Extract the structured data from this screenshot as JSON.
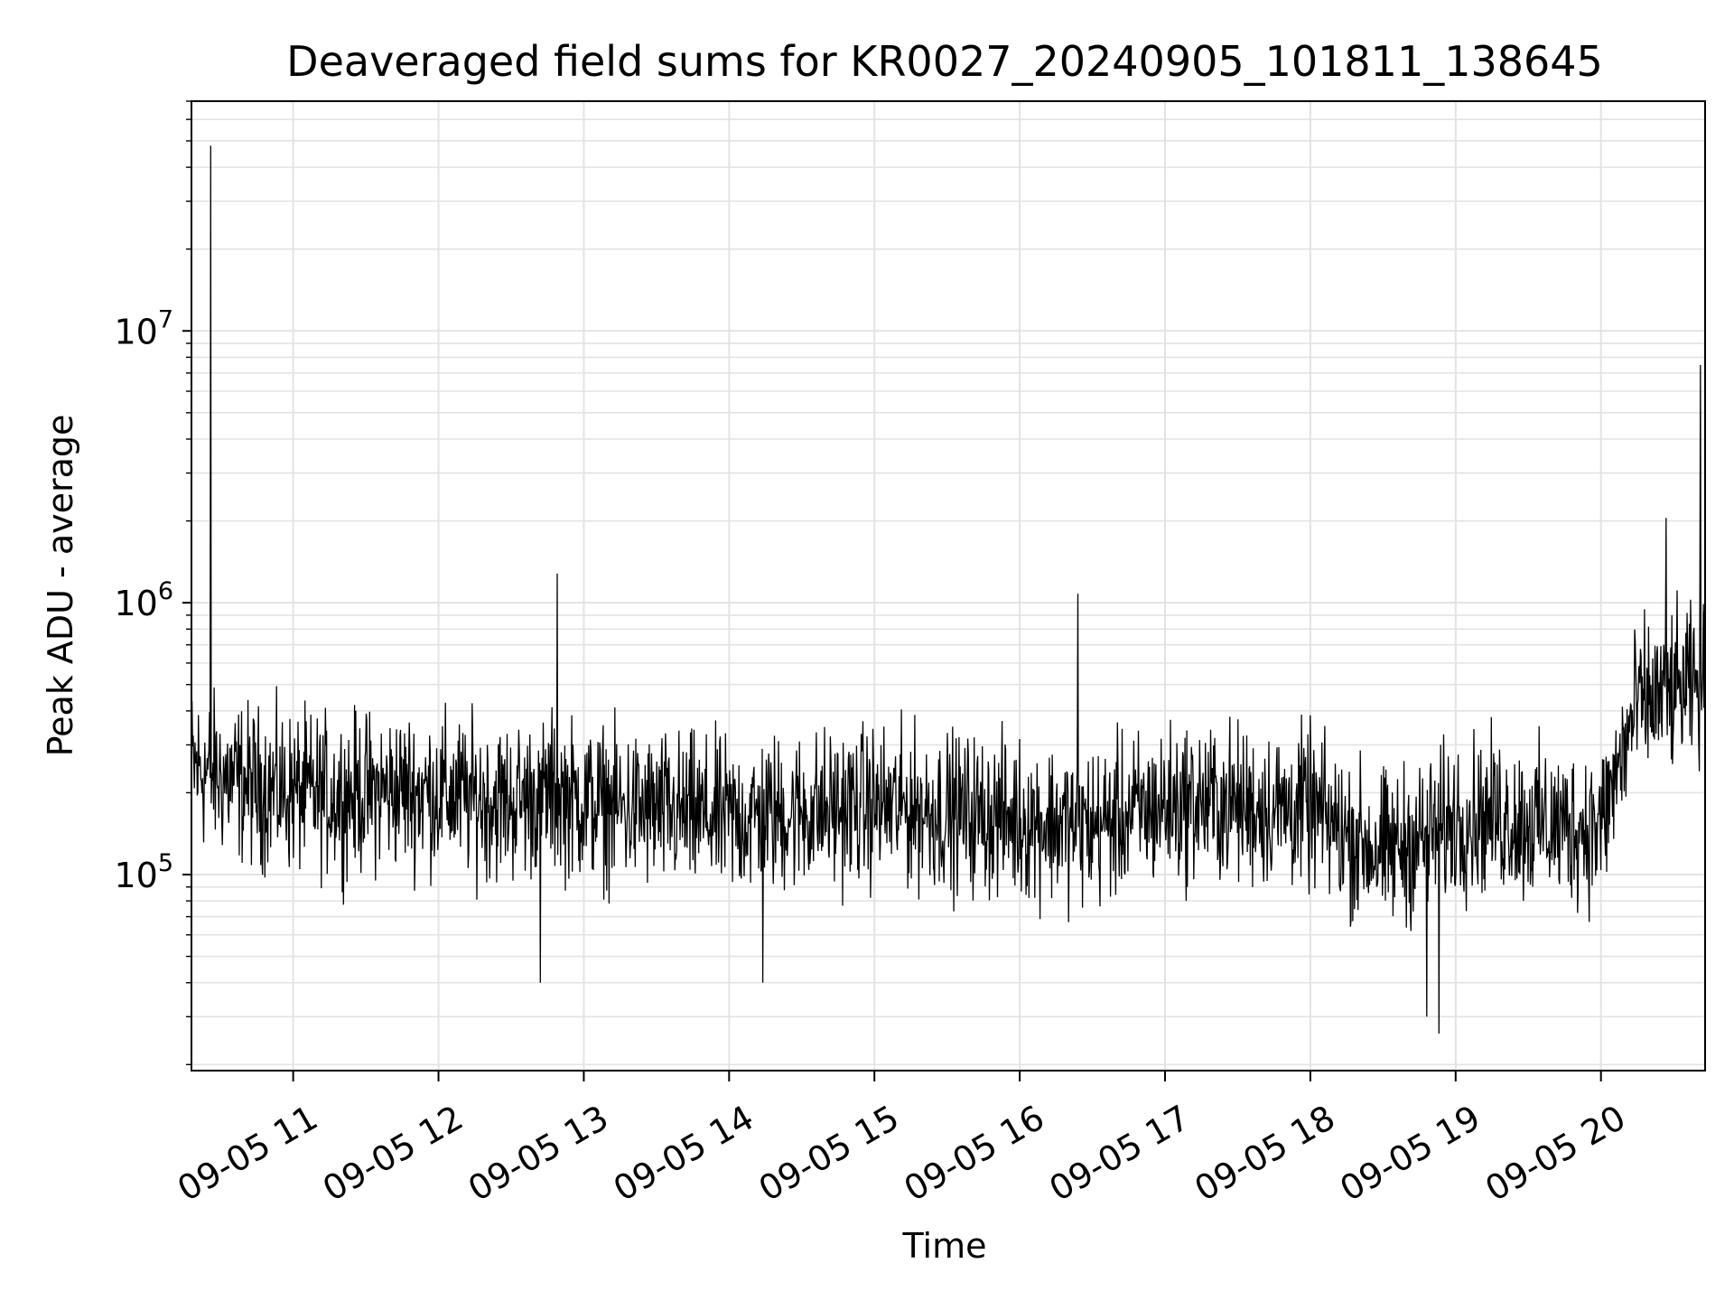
{
  "chart_data": {
    "type": "line",
    "title": "Deaveraged field sums for KR0027_20240905_101811_138645",
    "xlabel": "Time",
    "ylabel": "Peak ADU - average",
    "y_scale": "log",
    "ylim": [
      19000,
      70000000
    ],
    "xlim": [
      "09-05 10:18",
      "09-05 20:43"
    ],
    "x_ticks": [
      "09-05 11",
      "09-05 12",
      "09-05 13",
      "09-05 14",
      "09-05 15",
      "09-05 16",
      "09-05 17",
      "09-05 18",
      "09-05 19",
      "09-05 20"
    ],
    "y_ticks": [
      {
        "value": 100000,
        "base": "10",
        "exp": "5"
      },
      {
        "value": 1000000,
        "base": "10",
        "exp": "6"
      },
      {
        "value": 10000000,
        "base": "10",
        "exp": "7"
      }
    ],
    "grid": true,
    "line_color": "#000000",
    "series": [
      {
        "x": [
          "09-05 10:18",
          "09-05 10:30",
          "09-05 10:45",
          "09-05 11:00",
          "09-05 11:15",
          "09-05 11:30",
          "09-05 11:45",
          "09-05 12:00",
          "09-05 12:15",
          "09-05 12:30",
          "09-05 12:45",
          "09-05 13:00",
          "09-05 13:15",
          "09-05 13:30",
          "09-05 13:45",
          "09-05 14:00",
          "09-05 14:15",
          "09-05 14:30",
          "09-05 14:45",
          "09-05 15:00",
          "09-05 15:15",
          "09-05 15:30",
          "09-05 15:45",
          "09-05 16:00",
          "09-05 16:15",
          "09-05 16:30",
          "09-05 16:45",
          "09-05 17:00",
          "09-05 17:15",
          "09-05 17:30",
          "09-05 17:45",
          "09-05 18:00",
          "09-05 18:15",
          "09-05 18:30",
          "09-05 18:45",
          "09-05 19:00",
          "09-05 19:15",
          "09-05 19:30",
          "09-05 19:45",
          "09-05 20:00",
          "09-05 20:15",
          "09-05 20:30",
          "09-05 20:43"
        ],
        "y": [
          250000,
          230000,
          210000,
          200000,
          195000,
          200000,
          205000,
          200000,
          190000,
          185000,
          200000,
          185000,
          175000,
          170000,
          165000,
          160000,
          165000,
          170000,
          175000,
          180000,
          175000,
          170000,
          165000,
          160000,
          155000,
          150000,
          165000,
          180000,
          185000,
          180000,
          175000,
          175000,
          140000,
          120000,
          135000,
          160000,
          165000,
          155000,
          150000,
          150000,
          420000,
          470000,
          500000
        ]
      }
    ],
    "spikes": [
      {
        "x": "09-05 10:26",
        "y": 48000000
      },
      {
        "x": "09-05 12:49",
        "y": 1280000
      },
      {
        "x": "09-05 16:24",
        "y": 1080000
      },
      {
        "x": "09-05 20:27",
        "y": 2050000
      },
      {
        "x": "09-05 20:41",
        "y": 7500000
      }
    ],
    "dips": [
      {
        "x": "09-05 18:48",
        "y": 30000
      },
      {
        "x": "09-05 18:53",
        "y": 26000
      },
      {
        "x": "09-05 12:42",
        "y": 40000
      },
      {
        "x": "09-05 14:14",
        "y": 40000
      }
    ]
  }
}
